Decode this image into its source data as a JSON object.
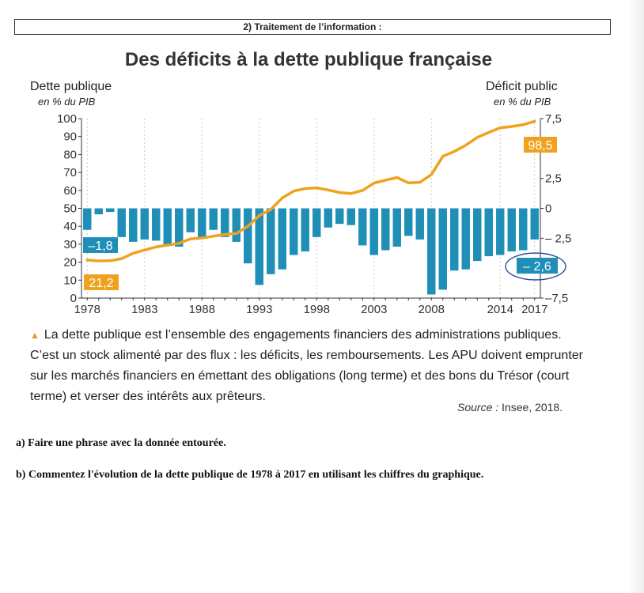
{
  "section_heading": "2) Traitement de l’information :",
  "chart_data": {
    "type": "bar+line",
    "title": "Des déficits à la dette publique française",
    "left_axis": {
      "label": "Dette publique",
      "unit": "en % du PIB",
      "range": [
        0,
        100
      ],
      "ticks": [
        "0",
        "10",
        "20",
        "30",
        "40",
        "50",
        "60",
        "70",
        "80",
        "90",
        "100"
      ]
    },
    "right_axis": {
      "label": "Déficit public",
      "unit": "en % du PIB",
      "range": [
        -7.5,
        7.5
      ],
      "ticks": [
        "7,5",
        "2,5",
        "0",
        "– 2,5",
        "–7,5"
      ]
    },
    "x_tick_labels": [
      "1978",
      "1983",
      "1988",
      "1993",
      "1998",
      "2003",
      "2008",
      "2014",
      "2017"
    ],
    "x_tick_years": [
      1978,
      1983,
      1988,
      1993,
      1998,
      2003,
      2008,
      2014,
      2017
    ],
    "years": [
      1978,
      1979,
      1980,
      1981,
      1982,
      1983,
      1984,
      1985,
      1986,
      1987,
      1988,
      1989,
      1990,
      1991,
      1992,
      1993,
      1994,
      1995,
      1996,
      1997,
      1998,
      1999,
      2000,
      2001,
      2002,
      2003,
      2004,
      2005,
      2006,
      2007,
      2008,
      2009,
      2010,
      2011,
      2012,
      2013,
      2014,
      2015,
      2016,
      2017
    ],
    "series": [
      {
        "name": "Déficit public",
        "kind": "bar",
        "axis": "right",
        "color": "#1f8fb8",
        "values": [
          -1.8,
          -0.5,
          -0.3,
          -2.4,
          -2.8,
          -2.6,
          -2.7,
          -3.0,
          -3.2,
          -2.0,
          -2.5,
          -1.8,
          -2.4,
          -2.8,
          -4.6,
          -6.4,
          -5.5,
          -5.1,
          -3.9,
          -3.6,
          -2.4,
          -1.6,
          -1.3,
          -1.4,
          -3.1,
          -3.9,
          -3.5,
          -3.2,
          -2.3,
          -2.6,
          -7.2,
          -6.8,
          -5.2,
          -5.1,
          -4.4,
          -4.0,
          -3.9,
          -3.6,
          -3.5,
          -2.6
        ]
      },
      {
        "name": "Dette publique",
        "kind": "line",
        "axis": "left",
        "color": "#f0a21e",
        "values": [
          21.2,
          20.7,
          20.8,
          22.0,
          25.0,
          26.8,
          28.5,
          29.5,
          30.5,
          33.0,
          33.5,
          34.5,
          35.4,
          36.0,
          40.0,
          46.0,
          49.4,
          55.8,
          59.6,
          61.0,
          61.4,
          60.2,
          58.8,
          58.3,
          60.0,
          64.1,
          65.7,
          67.2,
          64.2,
          64.5,
          68.8,
          79.0,
          81.7,
          85.2,
          89.5,
          92.3,
          94.9,
          95.6,
          96.6,
          98.5
        ]
      }
    ],
    "annotations": [
      {
        "text": "21,2",
        "series": "Dette publique",
        "year": 1978,
        "value": 21.2,
        "color": "#f0a21e"
      },
      {
        "text": "–1,8",
        "series": "Déficit public",
        "year": 1978,
        "value": -1.8,
        "color": "#1f8fb8"
      },
      {
        "text": "98,5",
        "series": "Dette publique",
        "year": 2017,
        "value": 98.5,
        "color": "#f0a21e"
      },
      {
        "text": "– 2,6",
        "series": "Déficit public",
        "year": 2017,
        "value": -2.6,
        "color": "#1f8fb8",
        "circled": true
      }
    ]
  },
  "caption": "La dette publique est l’ensemble des engagements financiers des administrations publiques. C’est un stock alimenté par des flux : les déficits, les remboursements. Les APU doivent emprunter sur les marchés financiers en émettant des obligations (long terme) et des bons du Trésor (court terme) et verser des intérêts aux prêteurs.",
  "source_label": "Source :",
  "source_text": "Insee, 2018.",
  "questions": {
    "a": "a) Faire une phrase avec la donnée entourée.",
    "b": "b) Commentez l'évolution de la dette publique de 1978 à 2017 en utilisant les chiffres du graphique."
  }
}
